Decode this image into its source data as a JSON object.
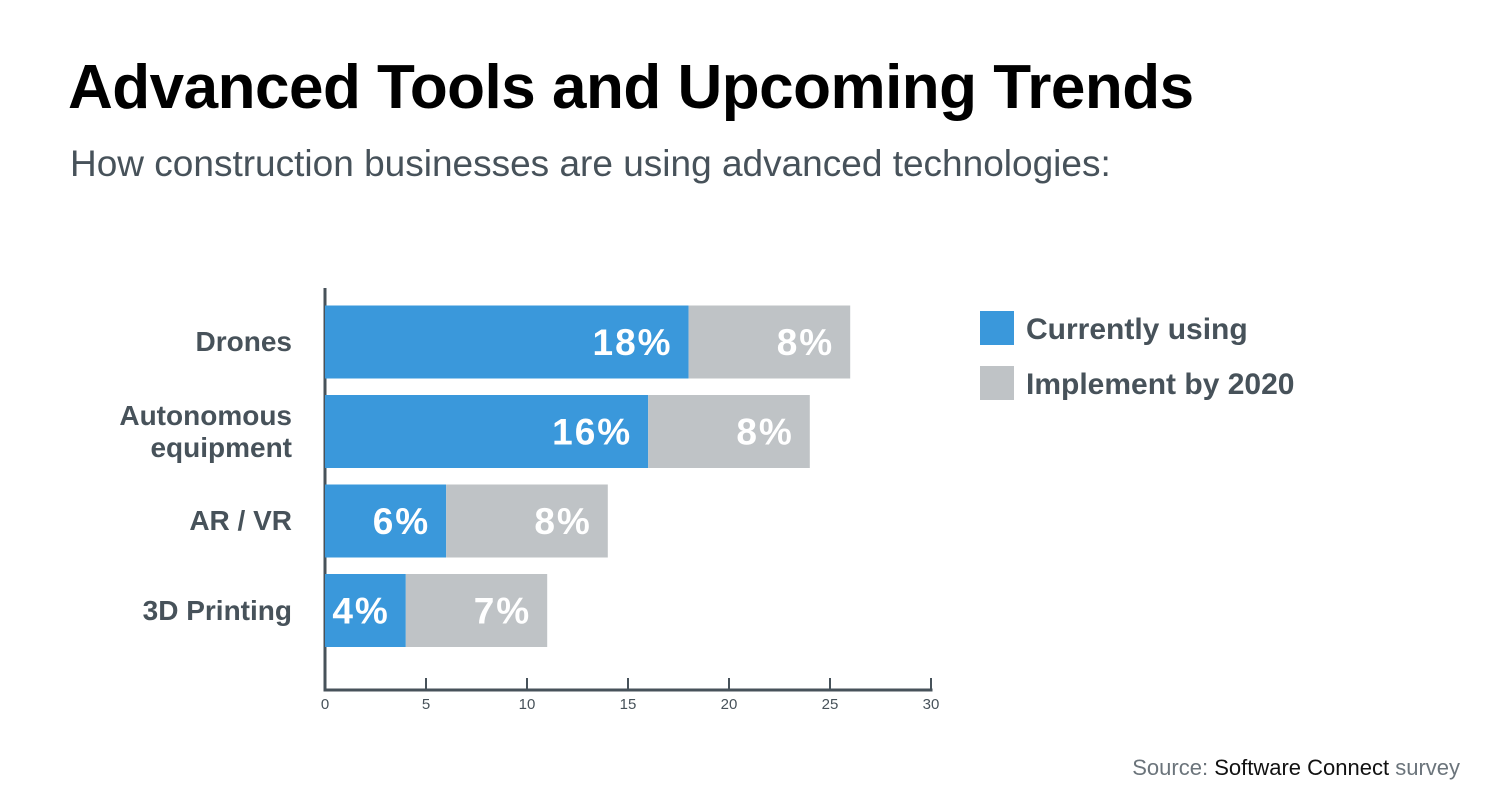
{
  "chart_data": {
    "type": "bar",
    "orientation": "horizontal",
    "stacked": true,
    "title": "Advanced Tools and Upcoming Trends",
    "subtitle": "How construction businesses are using advanced technologies:",
    "categories": [
      "Drones",
      "Autonomous equipment",
      "AR / VR",
      "3D Printing"
    ],
    "series": [
      {
        "name": "Currently using",
        "color": "#3a98db",
        "values": [
          18,
          16,
          6,
          4
        ],
        "value_labels": [
          "18%",
          "16%",
          "6%",
          "4%"
        ]
      },
      {
        "name": "Implement by 2020",
        "color": "#bfc3c6",
        "values": [
          8,
          8,
          8,
          7
        ],
        "value_labels": [
          "8%",
          "8%",
          "8%",
          "7%"
        ]
      }
    ],
    "xlim": [
      0,
      30
    ],
    "xticks": [
      0,
      5,
      10,
      15,
      20,
      25,
      30
    ],
    "legend": "right",
    "source": {
      "prefix": "Source:",
      "name": "Software Connect",
      "suffix": "survey"
    }
  }
}
